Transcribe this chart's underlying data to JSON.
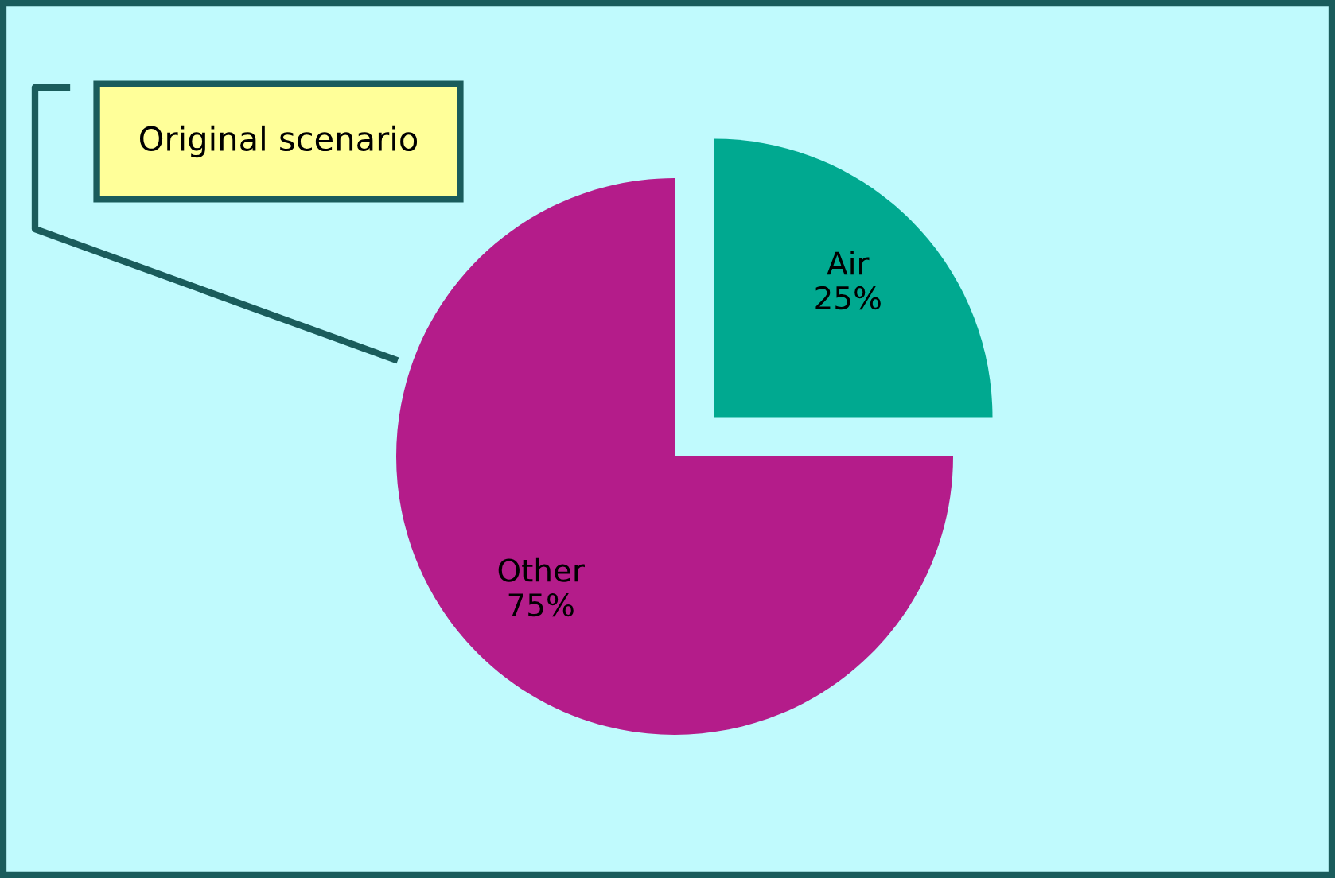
{
  "chart_data": {
    "type": "pie",
    "title": "Original scenario",
    "categories": [
      "Air",
      "Other"
    ],
    "values": [
      25,
      75
    ],
    "value_labels": [
      "25%",
      "75%"
    ],
    "colors": [
      "#00a990",
      "#b41c8a"
    ],
    "legend": false
  }
}
